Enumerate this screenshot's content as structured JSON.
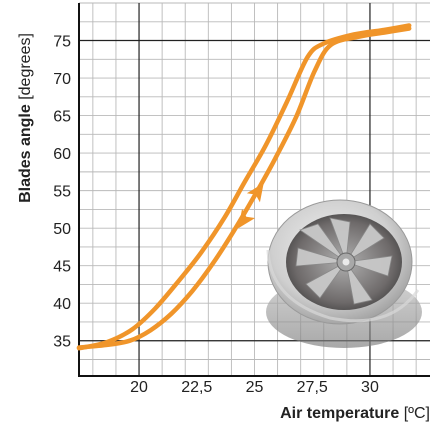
{
  "chart_data": {
    "type": "line",
    "title": "",
    "xlabel": {
      "bold": "Air temperature",
      "unit": " [ºC]"
    },
    "ylabel": {
      "bold": "Blades angle",
      "unit": " [degrees]"
    },
    "xlim": [
      17.4,
      32.6
    ],
    "ylim": [
      30.3,
      80.0
    ],
    "x_ticks": [
      {
        "value": 20,
        "label": "20"
      },
      {
        "value": 22.5,
        "label": "22,5"
      },
      {
        "value": 25,
        "label": "25"
      },
      {
        "value": 27.5,
        "label": "27,5"
      },
      {
        "value": 30,
        "label": "30"
      }
    ],
    "y_ticks": [
      {
        "value": 35,
        "label": "35"
      },
      {
        "value": 40,
        "label": "40"
      },
      {
        "value": 45,
        "label": "45"
      },
      {
        "value": 50,
        "label": "50"
      },
      {
        "value": 55,
        "label": "55"
      },
      {
        "value": 60,
        "label": "60"
      },
      {
        "value": 65,
        "label": "65"
      },
      {
        "value": 70,
        "label": "70"
      },
      {
        "value": 75,
        "label": "75"
      }
    ],
    "grid": true,
    "minor_grid_step_x": 1.0,
    "minor_grid_step_y": 2.5,
    "major_grid_x": [
      20,
      30
    ],
    "major_grid_y": [
      35,
      75
    ],
    "legend": "none",
    "series_color": "#f0952a",
    "series": [
      {
        "direction": "heating",
        "x": [
          17.4,
          18.5,
          19.6,
          20.5,
          21.4,
          22.3,
          23.2,
          24.1,
          25.0,
          25.9,
          26.8,
          27.6,
          28.3,
          29.5,
          30.7,
          31.7
        ],
        "y": [
          34.1,
          34.4,
          35.0,
          36.4,
          38.6,
          41.6,
          45.3,
          49.6,
          54.3,
          59.3,
          64.8,
          70.9,
          74.4,
          75.5,
          76.1,
          76.6
        ]
      },
      {
        "direction": "cooling",
        "x": [
          31.7,
          30.6,
          29.3,
          28.0,
          27.3,
          26.4,
          25.5,
          24.6,
          23.7,
          22.7,
          21.7,
          20.7,
          19.7,
          18.6,
          17.4
        ],
        "y": [
          77.0,
          76.4,
          75.8,
          74.6,
          72.8,
          66.8,
          61.1,
          56.3,
          51.4,
          46.8,
          42.9,
          39.3,
          36.5,
          34.8,
          34.0
        ]
      }
    ],
    "arrows": [
      {
        "x": 24.3,
        "y": 50.0,
        "direction": "down-left"
      },
      {
        "x": 25.4,
        "y": 56.0,
        "direction": "up-right"
      }
    ]
  }
}
